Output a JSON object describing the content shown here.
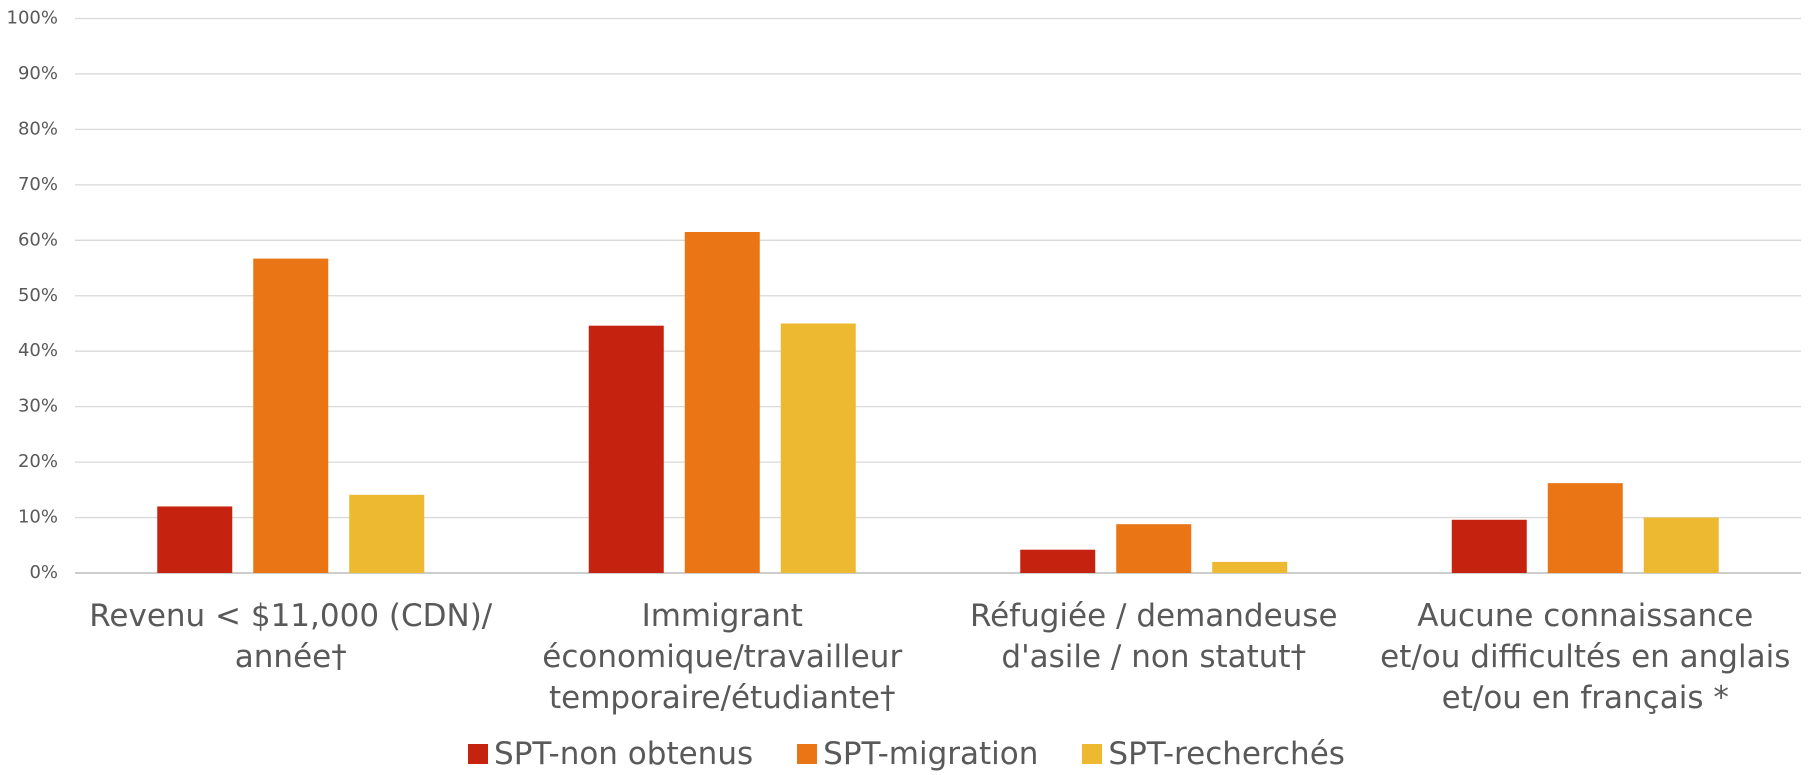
{
  "chart_data": {
    "type": "bar",
    "categories": [
      "Revenu < $11,000 (CDN)/ année†",
      "Immigrant économique/travailleur temporaire/étudiante†",
      "Réfugiée / demandeuse d'asile / non statut†",
      "Aucune connaissance et/ou difficultés en anglais et/ou en français *"
    ],
    "series": [
      {
        "name": "SPT-non obtenus",
        "color": "#c5220f",
        "values": [
          12,
          44.6,
          4.2,
          9.6
        ]
      },
      {
        "name": "SPT-migration",
        "color": "#e97514",
        "values": [
          56.7,
          61.5,
          8.8,
          16.2
        ]
      },
      {
        "name": "SPT-recherchés",
        "color": "#ecb930",
        "values": [
          14.1,
          45,
          2,
          10
        ]
      }
    ],
    "ylim": [
      0,
      100
    ],
    "yticks": [
      {
        "value": 0,
        "label": "0%"
      },
      {
        "value": 10,
        "label": "10%"
      },
      {
        "value": 20,
        "label": "20%"
      },
      {
        "value": 30,
        "label": "30%"
      },
      {
        "value": 40,
        "label": "40%"
      },
      {
        "value": 50,
        "label": "50%"
      },
      {
        "value": 60,
        "label": "60%"
      },
      {
        "value": 70,
        "label": "70%"
      },
      {
        "value": 80,
        "label": "80%"
      },
      {
        "value": 90,
        "label": "90%"
      },
      {
        "value": 100,
        "label": "100%"
      }
    ],
    "grid": true,
    "legend": "bottom"
  }
}
